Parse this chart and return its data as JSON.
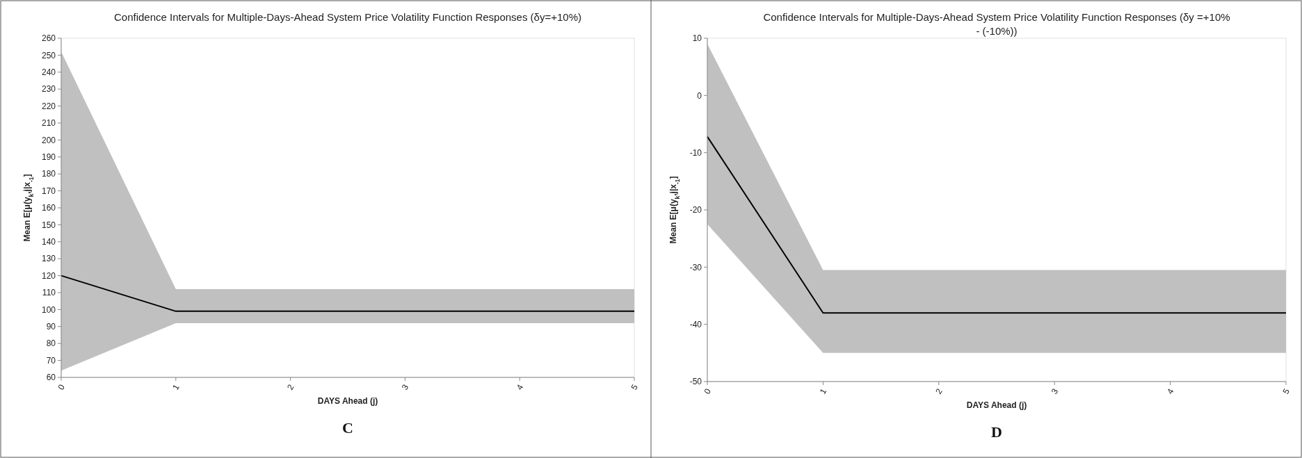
{
  "chart_data": [
    {
      "type": "line",
      "title": "Confidence Intervals for Multiple-Days-Ahead System Price Volatility Function Responses (δy=+10%)",
      "xlabel": "DAYS Ahead (j)",
      "ylabel": "Mean E[μ(y$_{k}$,j|x$_{-1}$]",
      "x": [
        0,
        1,
        2,
        3,
        4,
        5
      ],
      "xlim": [
        0,
        5
      ],
      "xticks": [
        0,
        1,
        2,
        3,
        4,
        5
      ],
      "ylim": [
        60,
        260
      ],
      "yticks": [
        60,
        70,
        80,
        90,
        100,
        110,
        120,
        130,
        140,
        150,
        160,
        170,
        180,
        190,
        200,
        210,
        220,
        230,
        240,
        250,
        260
      ],
      "grid": false,
      "annotations": [
        "C"
      ],
      "series": [
        {
          "color": "#000000",
          "values": [
            120,
            99,
            99,
            99,
            99,
            99
          ],
          "lower": [
            64,
            92,
            92,
            92,
            92,
            92
          ],
          "upper": [
            252,
            112,
            112,
            112,
            112,
            112
          ]
        }
      ]
    },
    {
      "type": "line",
      "title": "Confidence Intervals for Multiple-Days-Ahead System Price Volatility Function Responses (δy =+10% - (-10%))",
      "xlabel": "DAYS Ahead (j)",
      "ylabel": "Mean E[μ(y$_{k}$,j|x$_{-1}$]",
      "x": [
        0,
        1,
        2,
        3,
        4,
        5
      ],
      "xlim": [
        0,
        5
      ],
      "xticks": [
        0,
        1,
        2,
        3,
        4,
        5
      ],
      "ylim": [
        -50,
        10
      ],
      "yticks": [
        -50,
        -40,
        -30,
        -20,
        -10,
        0,
        10
      ],
      "grid": false,
      "annotations": [
        "D"
      ],
      "series": [
        {
          "color": "#000000",
          "values": [
            -7.2,
            -38,
            -38,
            -38,
            -38,
            -38
          ],
          "lower": [
            -22.5,
            -45,
            -45,
            -45,
            -45,
            -45
          ],
          "upper": [
            9,
            -30.5,
            -30.5,
            -30.5,
            -30.5,
            -30.5
          ]
        }
      ]
    }
  ]
}
